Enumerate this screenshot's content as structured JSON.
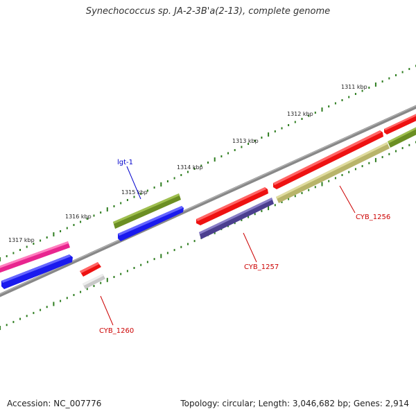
{
  "title": "Synechococcus sp. JA-2-3B'a(2-13), complete genome",
  "accession": "Accession: NC_007776",
  "genome_info": "Topology: circular; Length: 3,046,682 bp; Genes: 2,914",
  "kbp_labels": [
    "1311 kbp",
    "1312 kbp",
    "1313 kbp",
    "1314 kbp",
    "1315 kbp",
    "1316 kbp",
    "1317 kbp"
  ],
  "gene_labels": {
    "lgt1": "lgt-1",
    "cyb1256": "CYB_1256",
    "cyb1257": "CYB_1257",
    "cyb1260": "CYB_1260"
  },
  "colors": {
    "backbone": "#888888",
    "tick": "#2e7d1f",
    "red": "#ee1111",
    "olive": "#6b8e23",
    "blue": "#1a1aee",
    "magenta": "#e8258f",
    "purple": "#4b3f8f",
    "khaki": "#b8b46a",
    "gray": "#c8c8c8",
    "label_blue": "#0000cc",
    "label_red": "#cc0000"
  }
}
